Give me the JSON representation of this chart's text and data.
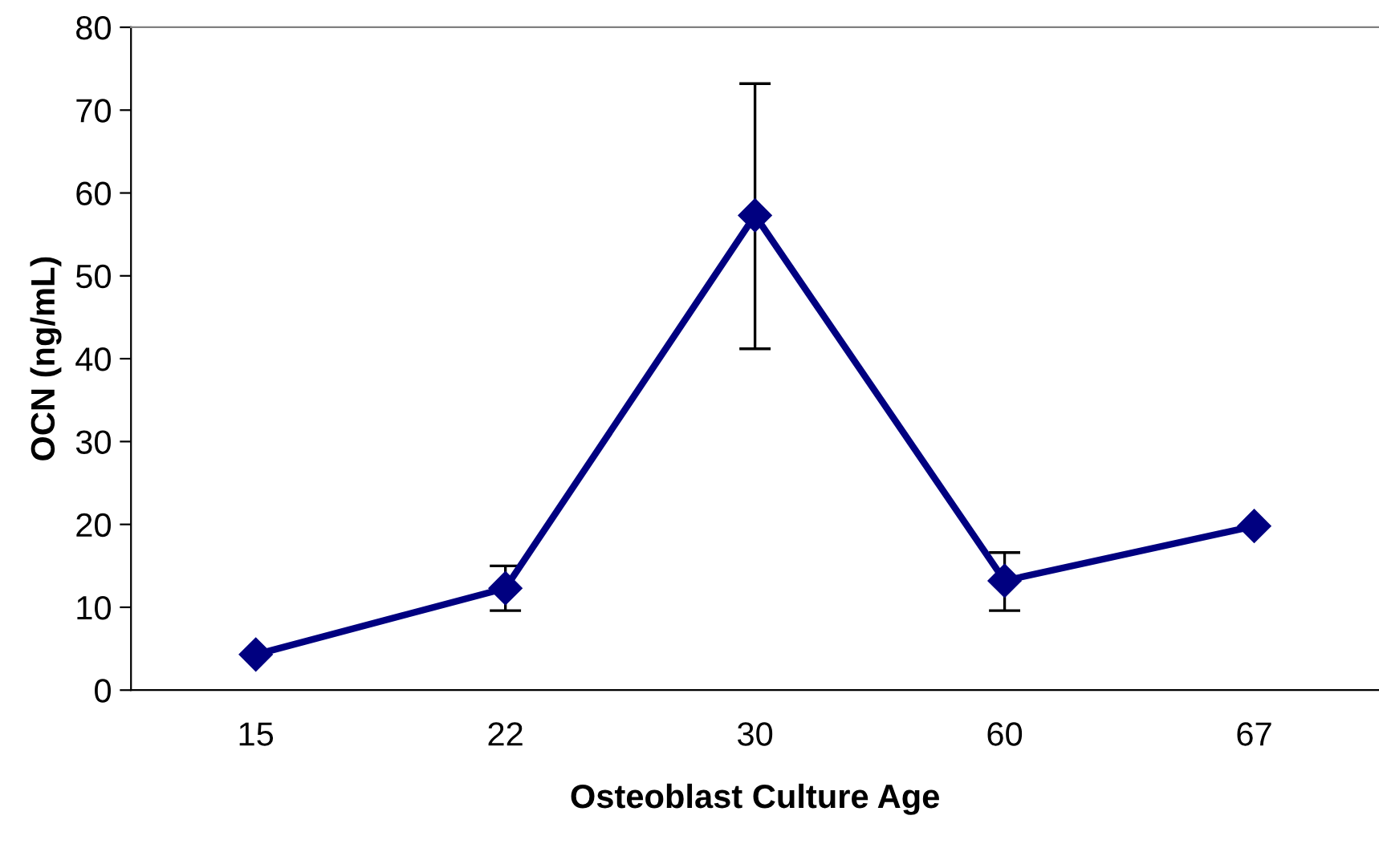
{
  "chart_data": {
    "type": "line",
    "xlabel": "Osteoblast Culture Age",
    "ylabel": "OCN (ng/mL)",
    "categories": [
      "15",
      "22",
      "30",
      "60",
      "67"
    ],
    "series": [
      {
        "color": "#000080",
        "values": [
          4.3,
          12.3,
          57.3,
          13.2,
          19.8
        ],
        "errors": [
          null,
          [
            9.6,
            15.0
          ],
          [
            41.2,
            73.2
          ],
          [
            9.6,
            16.6
          ],
          null
        ]
      }
    ],
    "ylim": [
      0,
      80
    ],
    "yticks": [
      0,
      10,
      20,
      30,
      40,
      50,
      60,
      70,
      80
    ],
    "marker": "diamond",
    "line_style": "solid",
    "grid": false,
    "legend": false
  }
}
